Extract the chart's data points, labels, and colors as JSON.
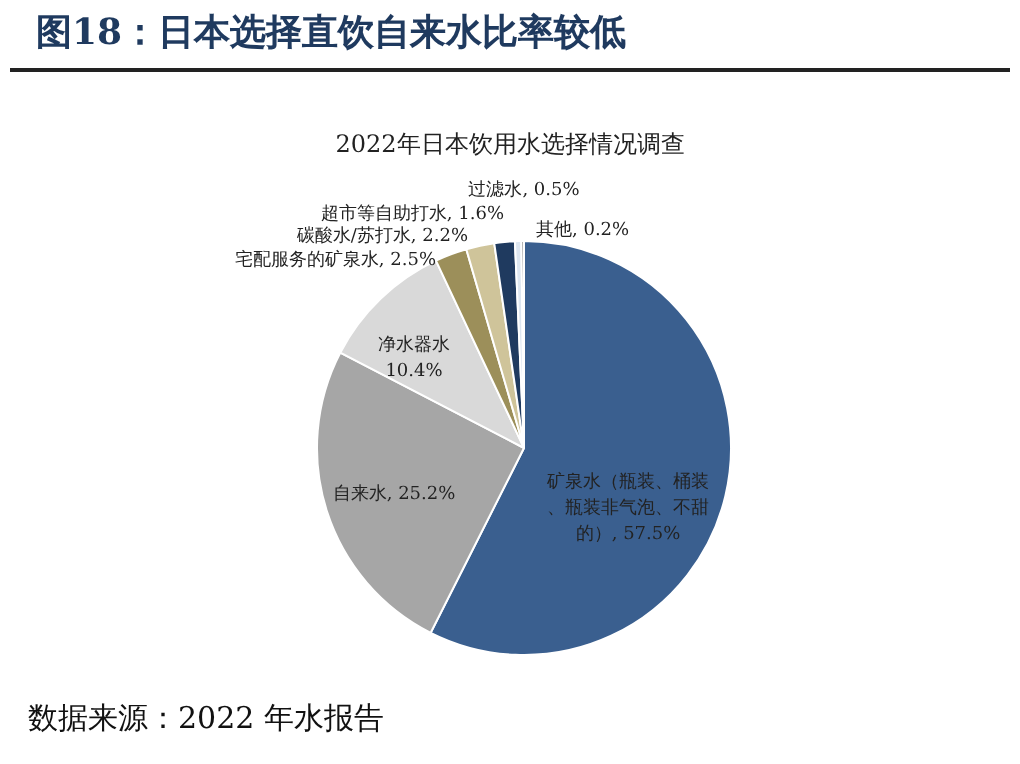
{
  "chart_data": {
    "type": "pie",
    "title": "图18：日本选择直饮自来水比率较低",
    "subtitle": "2022年日本饮用水选择情况调查",
    "categories": [
      "矿泉水（瓶装、桶装、瓶装非气泡、不甜的）",
      "自来水",
      "净水器水",
      "宅配服务的矿泉水",
      "碳酸水/苏打水",
      "超市等自助打水",
      "过滤水",
      "其他"
    ],
    "values": [
      57.5,
      25.2,
      10.4,
      2.5,
      2.2,
      1.6,
      0.5,
      0.2
    ],
    "value_labels": [
      "57.5%",
      "25.2%",
      "10.4%",
      "2.5%",
      "2.2%",
      "1.6%",
      "0.5%",
      "0.2%"
    ],
    "colors": [
      "#3a5f8f",
      "#a6a6a6",
      "#d9d9d9",
      "#9c8f5a",
      "#cfc49a",
      "#1f3a5f",
      "#dde6f0",
      "#7f7f7f"
    ],
    "legend": false,
    "annotations": [
      "数据来源：2022 年水报告"
    ]
  }
}
